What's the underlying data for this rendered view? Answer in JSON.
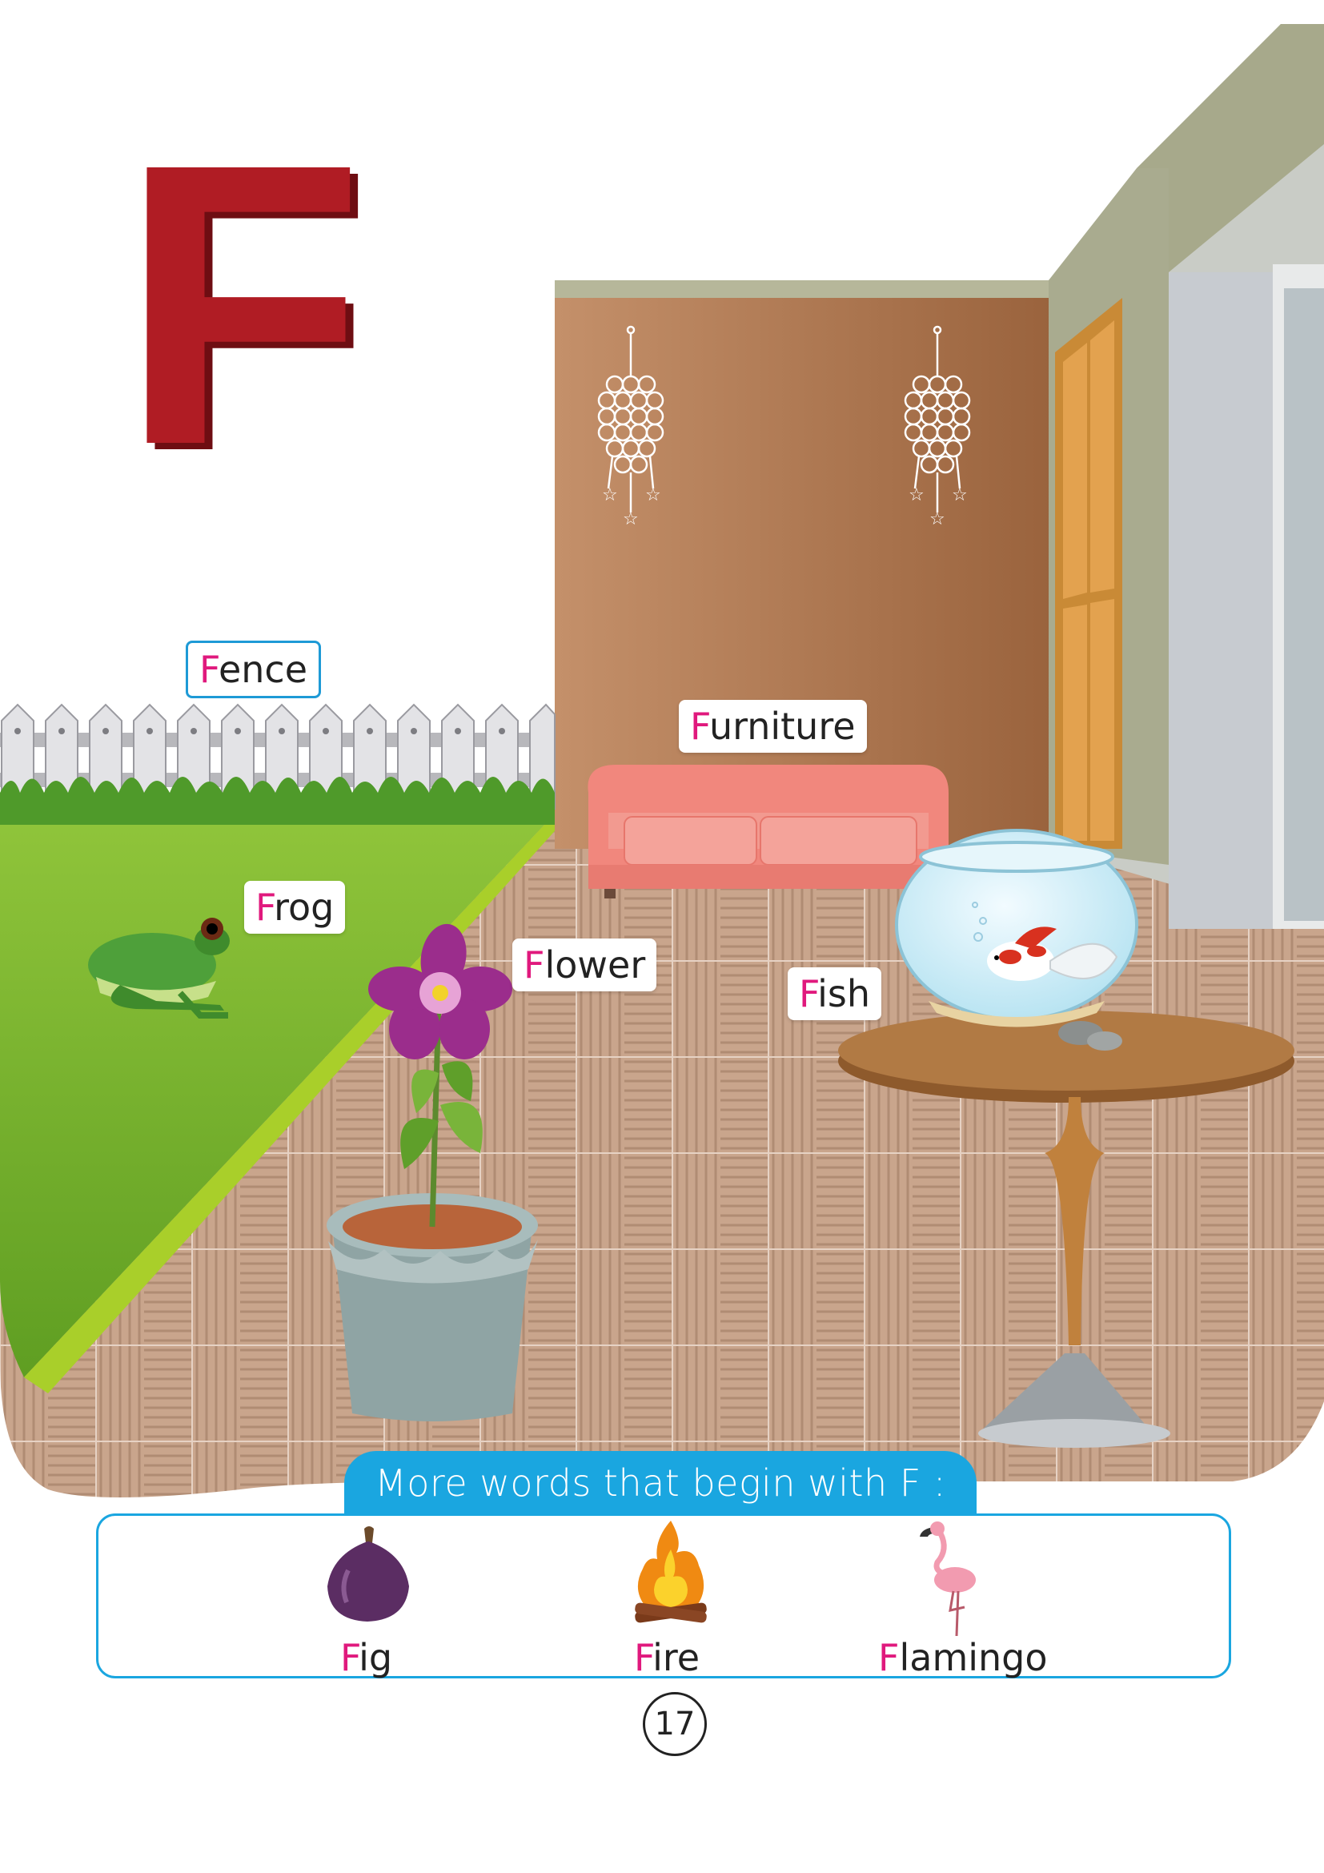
{
  "letter": "F",
  "scene_labels": {
    "fence": {
      "first": "F",
      "rest": "ence"
    },
    "furniture": {
      "first": "F",
      "rest": "urniture"
    },
    "frog": {
      "first": "F",
      "rest": "rog"
    },
    "flower": {
      "first": "F",
      "rest": "lower"
    },
    "fish": {
      "first": "F",
      "rest": "ish"
    }
  },
  "more_words": {
    "heading": "More words that begin with F :",
    "items": [
      {
        "first": "F",
        "rest": "ig",
        "icon": "fig-icon"
      },
      {
        "first": "F",
        "rest": "ire",
        "icon": "fire-icon"
      },
      {
        "first": "F",
        "rest": "lamingo",
        "icon": "flamingo-icon"
      }
    ]
  },
  "page_number": "17",
  "colors": {
    "letter": "#b01c24",
    "highlight": "#e0197d",
    "accent": "#1aa6e0"
  }
}
